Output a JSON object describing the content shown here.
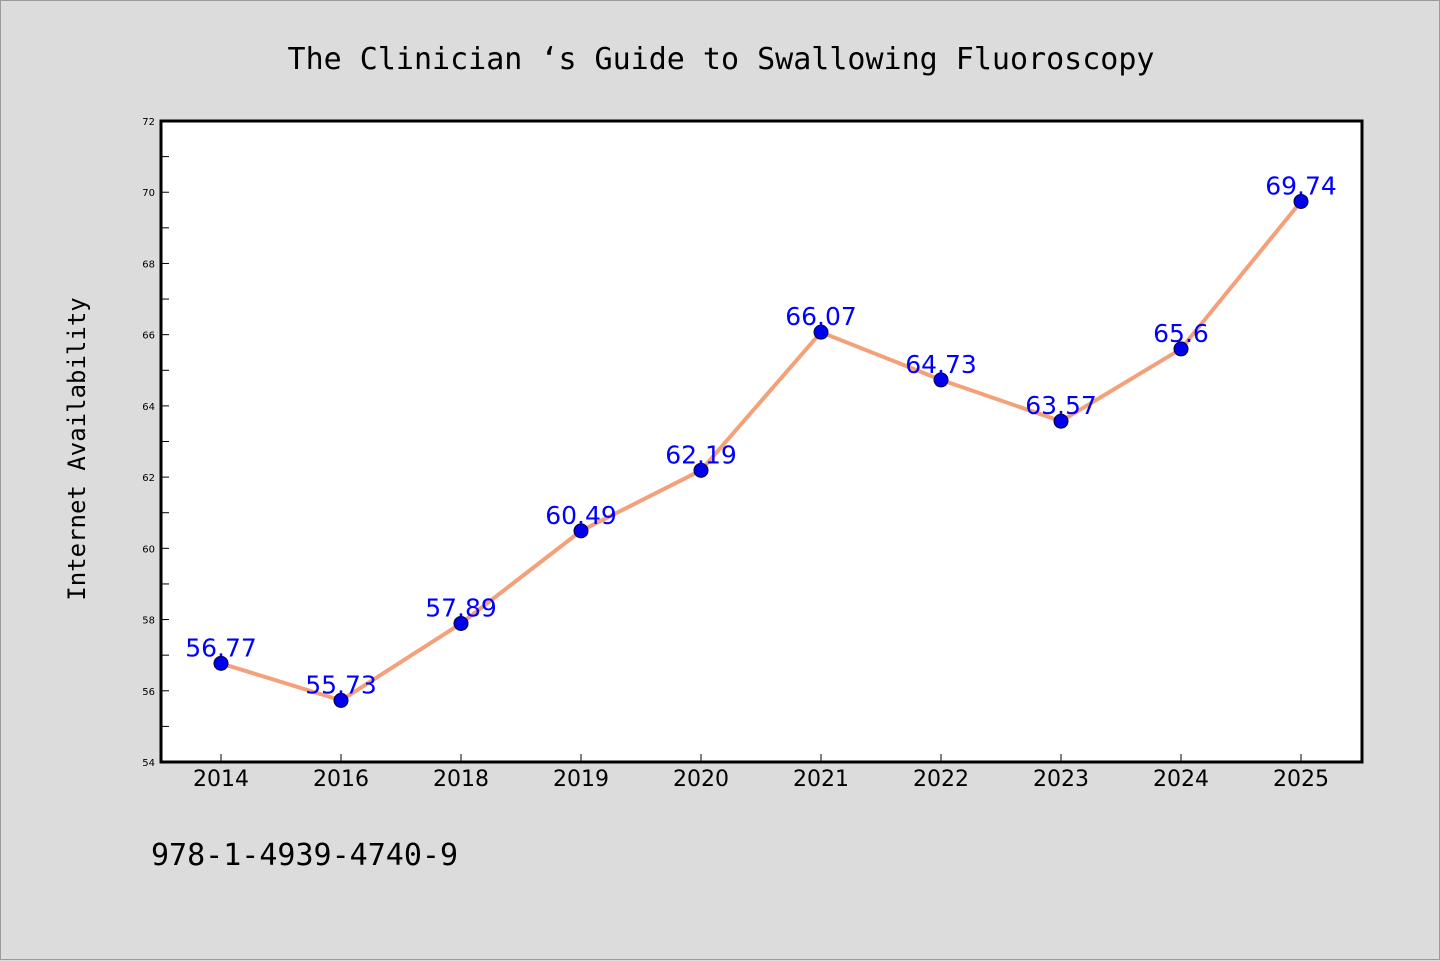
{
  "chart_data": {
    "type": "line",
    "title": "The Clinician ‘s Guide to Swallowing Fluoroscopy",
    "ylabel": "Internet Availability",
    "xlabel": "",
    "categories": [
      "2014",
      "2016",
      "2018",
      "2019",
      "2020",
      "2021",
      "2022",
      "2023",
      "2024",
      "2025"
    ],
    "values": [
      56.77,
      55.73,
      57.89,
      60.49,
      62.19,
      66.07,
      64.73,
      63.57,
      65.6,
      69.74
    ],
    "data_labels": [
      "56.77",
      "55.73",
      "57.89",
      "60.49",
      "62.19",
      "66.07",
      "64.73",
      "63.57",
      "65.6",
      "69.74"
    ],
    "ylim": [
      54,
      72
    ],
    "yticks": [
      "54",
      "56",
      "58",
      "60",
      "62",
      "64",
      "66",
      "68",
      "70",
      "72"
    ],
    "grid": false,
    "legend": "none",
    "colors": {
      "line": "#f4a07a",
      "marker": "#0000ee",
      "data_label": "#0000ff",
      "background": "#dcdcdc",
      "plot_background": "#ffffff"
    }
  },
  "footnote": "978-1-4939-4740-9"
}
